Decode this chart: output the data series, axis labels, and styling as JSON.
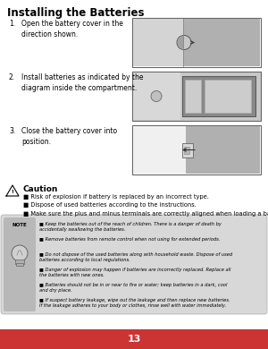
{
  "title": "Installing the Batteries",
  "step1_num": "1.",
  "step1_text": "Open the battery cover in the\ndirection shown.",
  "step2_num": "2.",
  "step2_text": "Install batteries as indicated by the\ndiagram inside the compartment.",
  "step3_num": "3.",
  "step3_text": "Close the battery cover into\nposition.",
  "caution_title": "Caution",
  "caution_bullets": [
    "Risk of explosion if battery is replaced by an incorrect type.",
    "Dispose of used batteries according to the instructions.",
    "Make sure the plus and minus terminals are correctly aligned when loading a battery."
  ],
  "note_bullets": [
    "Keep the batteries out of the reach of children. There is a danger of death by\naccidentally swallowing the batteries.",
    "Remove batteries from remote control when not using for extended periods.",
    "Do not dispose of the used batteries along with household waste. Dispose of used\nbatteries according to local regulations.",
    "Danger of explosion may happen if batteries are incorrectly replaced. Replace all\nthe batteries with new ones.",
    "Batteries should not be in or near to fire or water; keep batteries in a dark, cool\nand dry place.",
    "If suspect battery leakage, wipe out the leakage and then replace new batteries.\nIf the leakage adheres to your body or clothes, rinse well with water immediately."
  ],
  "footer_color": "#cc3333",
  "footer_text": "13",
  "bg_color": "#ffffff",
  "note_bg": "#d8d8d8",
  "note_icon_bg": "#b8b8b8"
}
